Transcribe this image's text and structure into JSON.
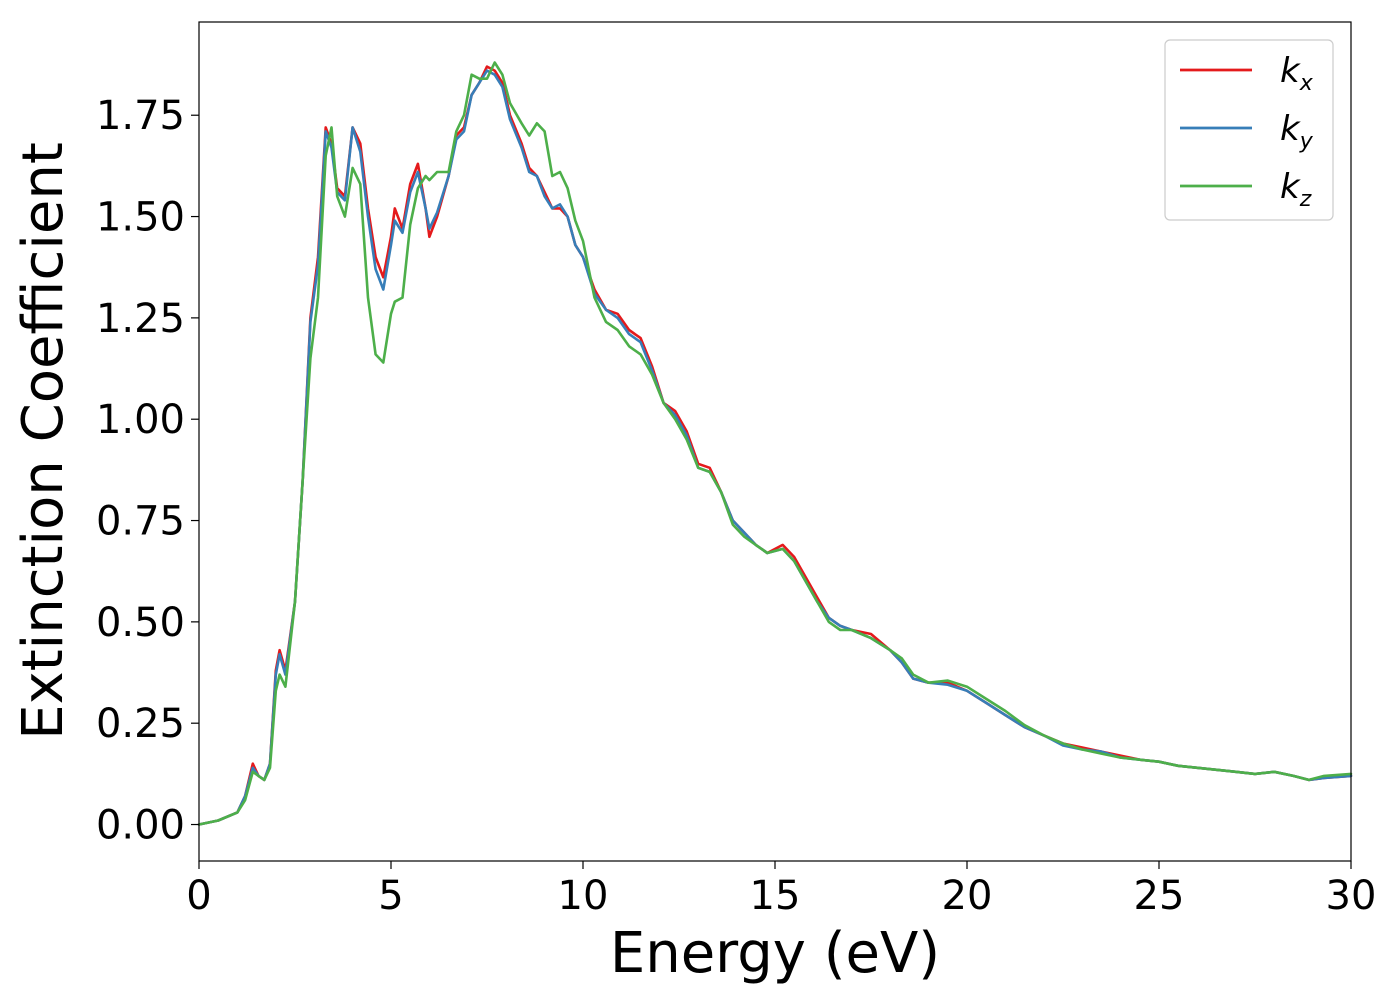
{
  "chart_data": {
    "type": "line",
    "xlabel": "Energy (eV)",
    "ylabel": "Extinction Coefficient",
    "xlim": [
      0,
      30
    ],
    "ylim": [
      -0.09,
      1.98
    ],
    "xticks": [
      0,
      5,
      10,
      15,
      20,
      25,
      30
    ],
    "xtick_labels": [
      "0",
      "5",
      "10",
      "15",
      "20",
      "25",
      "30"
    ],
    "yticks": [
      0.0,
      0.25,
      0.5,
      0.75,
      1.0,
      1.25,
      1.5,
      1.75
    ],
    "ytick_labels": [
      "0.00",
      "0.25",
      "0.50",
      "0.75",
      "1.00",
      "1.25",
      "1.50",
      "1.75"
    ],
    "grid": false,
    "legend_position": "top-right",
    "series": [
      {
        "name": "k",
        "subscript": "x",
        "color": "#e41a1c",
        "points": [
          [
            0,
            0.0
          ],
          [
            0.5,
            0.01
          ],
          [
            1.0,
            0.03
          ],
          [
            1.2,
            0.07
          ],
          [
            1.4,
            0.15
          ],
          [
            1.55,
            0.12
          ],
          [
            1.7,
            0.11
          ],
          [
            1.85,
            0.15
          ],
          [
            2.0,
            0.38
          ],
          [
            2.1,
            0.43
          ],
          [
            2.25,
            0.38
          ],
          [
            2.5,
            0.55
          ],
          [
            2.7,
            0.85
          ],
          [
            2.9,
            1.25
          ],
          [
            3.1,
            1.4
          ],
          [
            3.3,
            1.72
          ],
          [
            3.45,
            1.68
          ],
          [
            3.6,
            1.57
          ],
          [
            3.8,
            1.55
          ],
          [
            4.0,
            1.72
          ],
          [
            4.2,
            1.68
          ],
          [
            4.4,
            1.52
          ],
          [
            4.6,
            1.4
          ],
          [
            4.8,
            1.35
          ],
          [
            5.0,
            1.45
          ],
          [
            5.1,
            1.52
          ],
          [
            5.3,
            1.47
          ],
          [
            5.5,
            1.58
          ],
          [
            5.7,
            1.63
          ],
          [
            5.9,
            1.52
          ],
          [
            6.0,
            1.45
          ],
          [
            6.2,
            1.5
          ],
          [
            6.5,
            1.6
          ],
          [
            6.7,
            1.7
          ],
          [
            6.9,
            1.72
          ],
          [
            7.1,
            1.8
          ],
          [
            7.3,
            1.83
          ],
          [
            7.5,
            1.87
          ],
          [
            7.7,
            1.86
          ],
          [
            7.9,
            1.83
          ],
          [
            8.1,
            1.75
          ],
          [
            8.4,
            1.68
          ],
          [
            8.6,
            1.62
          ],
          [
            8.8,
            1.6
          ],
          [
            9.0,
            1.56
          ],
          [
            9.2,
            1.52
          ],
          [
            9.4,
            1.52
          ],
          [
            9.6,
            1.5
          ],
          [
            9.8,
            1.43
          ],
          [
            10.0,
            1.4
          ],
          [
            10.3,
            1.32
          ],
          [
            10.6,
            1.27
          ],
          [
            10.9,
            1.26
          ],
          [
            11.2,
            1.22
          ],
          [
            11.5,
            1.2
          ],
          [
            11.8,
            1.13
          ],
          [
            12.1,
            1.04
          ],
          [
            12.4,
            1.02
          ],
          [
            12.7,
            0.97
          ],
          [
            13.0,
            0.89
          ],
          [
            13.3,
            0.88
          ],
          [
            13.6,
            0.82
          ],
          [
            13.9,
            0.75
          ],
          [
            14.2,
            0.72
          ],
          [
            14.5,
            0.69
          ],
          [
            14.8,
            0.67
          ],
          [
            15.2,
            0.69
          ],
          [
            15.5,
            0.66
          ],
          [
            15.8,
            0.61
          ],
          [
            16.1,
            0.56
          ],
          [
            16.4,
            0.51
          ],
          [
            16.7,
            0.49
          ],
          [
            17.0,
            0.48
          ],
          [
            17.5,
            0.47
          ],
          [
            18.0,
            0.43
          ],
          [
            18.3,
            0.4
          ],
          [
            18.6,
            0.36
          ],
          [
            19.0,
            0.35
          ],
          [
            19.5,
            0.35
          ],
          [
            20.0,
            0.33
          ],
          [
            20.5,
            0.3
          ],
          [
            21.0,
            0.27
          ],
          [
            21.5,
            0.24
          ],
          [
            22.0,
            0.22
          ],
          [
            22.5,
            0.2
          ],
          [
            23.0,
            0.19
          ],
          [
            23.5,
            0.18
          ],
          [
            24.0,
            0.17
          ],
          [
            24.5,
            0.16
          ],
          [
            25.0,
            0.155
          ],
          [
            25.5,
            0.145
          ],
          [
            26.0,
            0.14
          ],
          [
            26.5,
            0.135
          ],
          [
            27.0,
            0.13
          ],
          [
            27.5,
            0.125
          ],
          [
            28.0,
            0.13
          ],
          [
            28.5,
            0.12
          ],
          [
            28.9,
            0.11
          ],
          [
            29.3,
            0.115
          ],
          [
            30.0,
            0.12
          ]
        ]
      },
      {
        "name": "k",
        "subscript": "y",
        "color": "#377eb8",
        "points": [
          [
            0,
            0.0
          ],
          [
            0.5,
            0.01
          ],
          [
            1.0,
            0.03
          ],
          [
            1.2,
            0.07
          ],
          [
            1.4,
            0.14
          ],
          [
            1.55,
            0.12
          ],
          [
            1.7,
            0.11
          ],
          [
            1.85,
            0.15
          ],
          [
            2.0,
            0.37
          ],
          [
            2.1,
            0.42
          ],
          [
            2.25,
            0.37
          ],
          [
            2.5,
            0.55
          ],
          [
            2.7,
            0.85
          ],
          [
            2.9,
            1.24
          ],
          [
            3.1,
            1.38
          ],
          [
            3.3,
            1.71
          ],
          [
            3.45,
            1.67
          ],
          [
            3.6,
            1.56
          ],
          [
            3.8,
            1.54
          ],
          [
            4.0,
            1.72
          ],
          [
            4.2,
            1.66
          ],
          [
            4.4,
            1.5
          ],
          [
            4.6,
            1.37
          ],
          [
            4.8,
            1.32
          ],
          [
            5.0,
            1.43
          ],
          [
            5.1,
            1.49
          ],
          [
            5.3,
            1.46
          ],
          [
            5.5,
            1.56
          ],
          [
            5.7,
            1.61
          ],
          [
            5.9,
            1.52
          ],
          [
            6.0,
            1.47
          ],
          [
            6.2,
            1.51
          ],
          [
            6.5,
            1.6
          ],
          [
            6.7,
            1.69
          ],
          [
            6.9,
            1.71
          ],
          [
            7.1,
            1.8
          ],
          [
            7.3,
            1.83
          ],
          [
            7.5,
            1.86
          ],
          [
            7.7,
            1.85
          ],
          [
            7.9,
            1.82
          ],
          [
            8.1,
            1.74
          ],
          [
            8.4,
            1.67
          ],
          [
            8.6,
            1.61
          ],
          [
            8.8,
            1.6
          ],
          [
            9.0,
            1.55
          ],
          [
            9.2,
            1.52
          ],
          [
            9.4,
            1.53
          ],
          [
            9.6,
            1.5
          ],
          [
            9.8,
            1.43
          ],
          [
            10.0,
            1.4
          ],
          [
            10.3,
            1.31
          ],
          [
            10.6,
            1.27
          ],
          [
            10.9,
            1.25
          ],
          [
            11.2,
            1.21
          ],
          [
            11.5,
            1.19
          ],
          [
            11.8,
            1.12
          ],
          [
            12.1,
            1.04
          ],
          [
            12.4,
            1.01
          ],
          [
            12.7,
            0.96
          ],
          [
            13.0,
            0.88
          ],
          [
            13.3,
            0.87
          ],
          [
            13.6,
            0.82
          ],
          [
            13.9,
            0.75
          ],
          [
            14.2,
            0.72
          ],
          [
            14.5,
            0.69
          ],
          [
            14.8,
            0.67
          ],
          [
            15.2,
            0.68
          ],
          [
            15.5,
            0.65
          ],
          [
            15.8,
            0.6
          ],
          [
            16.1,
            0.55
          ],
          [
            16.4,
            0.51
          ],
          [
            16.7,
            0.49
          ],
          [
            17.0,
            0.48
          ],
          [
            17.5,
            0.46
          ],
          [
            18.0,
            0.43
          ],
          [
            18.3,
            0.4
          ],
          [
            18.6,
            0.36
          ],
          [
            19.0,
            0.35
          ],
          [
            19.5,
            0.345
          ],
          [
            20.0,
            0.33
          ],
          [
            20.5,
            0.3
          ],
          [
            21.0,
            0.27
          ],
          [
            21.5,
            0.24
          ],
          [
            22.0,
            0.22
          ],
          [
            22.5,
            0.195
          ],
          [
            23.0,
            0.185
          ],
          [
            23.5,
            0.18
          ],
          [
            24.0,
            0.165
          ],
          [
            24.5,
            0.16
          ],
          [
            25.0,
            0.155
          ],
          [
            25.5,
            0.145
          ],
          [
            26.0,
            0.14
          ],
          [
            26.5,
            0.135
          ],
          [
            27.0,
            0.13
          ],
          [
            27.5,
            0.125
          ],
          [
            28.0,
            0.13
          ],
          [
            28.5,
            0.12
          ],
          [
            28.9,
            0.11
          ],
          [
            29.3,
            0.115
          ],
          [
            30.0,
            0.12
          ]
        ]
      },
      {
        "name": "k",
        "subscript": "z",
        "color": "#4daf4a",
        "points": [
          [
            0,
            0.0
          ],
          [
            0.5,
            0.01
          ],
          [
            1.0,
            0.03
          ],
          [
            1.2,
            0.06
          ],
          [
            1.4,
            0.13
          ],
          [
            1.55,
            0.12
          ],
          [
            1.7,
            0.11
          ],
          [
            1.85,
            0.14
          ],
          [
            2.0,
            0.33
          ],
          [
            2.1,
            0.37
          ],
          [
            2.25,
            0.34
          ],
          [
            2.5,
            0.55
          ],
          [
            2.7,
            0.85
          ],
          [
            2.9,
            1.15
          ],
          [
            3.1,
            1.3
          ],
          [
            3.3,
            1.65
          ],
          [
            3.45,
            1.72
          ],
          [
            3.6,
            1.55
          ],
          [
            3.8,
            1.5
          ],
          [
            4.0,
            1.62
          ],
          [
            4.2,
            1.58
          ],
          [
            4.4,
            1.3
          ],
          [
            4.6,
            1.16
          ],
          [
            4.8,
            1.14
          ],
          [
            5.0,
            1.26
          ],
          [
            5.1,
            1.29
          ],
          [
            5.3,
            1.3
          ],
          [
            5.5,
            1.48
          ],
          [
            5.7,
            1.57
          ],
          [
            5.9,
            1.6
          ],
          [
            6.0,
            1.59
          ],
          [
            6.2,
            1.61
          ],
          [
            6.5,
            1.61
          ],
          [
            6.7,
            1.71
          ],
          [
            6.9,
            1.75
          ],
          [
            7.1,
            1.85
          ],
          [
            7.3,
            1.84
          ],
          [
            7.5,
            1.84
          ],
          [
            7.7,
            1.88
          ],
          [
            7.9,
            1.85
          ],
          [
            8.1,
            1.78
          ],
          [
            8.4,
            1.73
          ],
          [
            8.6,
            1.7
          ],
          [
            8.8,
            1.73
          ],
          [
            9.0,
            1.71
          ],
          [
            9.2,
            1.6
          ],
          [
            9.4,
            1.61
          ],
          [
            9.6,
            1.57
          ],
          [
            9.8,
            1.49
          ],
          [
            10.0,
            1.44
          ],
          [
            10.3,
            1.3
          ],
          [
            10.6,
            1.24
          ],
          [
            10.9,
            1.22
          ],
          [
            11.2,
            1.18
          ],
          [
            11.5,
            1.16
          ],
          [
            11.8,
            1.11
          ],
          [
            12.1,
            1.04
          ],
          [
            12.4,
            1.0
          ],
          [
            12.7,
            0.95
          ],
          [
            13.0,
            0.88
          ],
          [
            13.3,
            0.87
          ],
          [
            13.6,
            0.82
          ],
          [
            13.9,
            0.74
          ],
          [
            14.2,
            0.71
          ],
          [
            14.5,
            0.69
          ],
          [
            14.8,
            0.67
          ],
          [
            15.2,
            0.68
          ],
          [
            15.5,
            0.65
          ],
          [
            15.8,
            0.6
          ],
          [
            16.1,
            0.55
          ],
          [
            16.4,
            0.5
          ],
          [
            16.7,
            0.48
          ],
          [
            17.0,
            0.48
          ],
          [
            17.5,
            0.46
          ],
          [
            18.0,
            0.43
          ],
          [
            18.3,
            0.41
          ],
          [
            18.6,
            0.37
          ],
          [
            19.0,
            0.35
          ],
          [
            19.5,
            0.355
          ],
          [
            20.0,
            0.34
          ],
          [
            20.5,
            0.31
          ],
          [
            21.0,
            0.28
          ],
          [
            21.5,
            0.245
          ],
          [
            22.0,
            0.22
          ],
          [
            22.5,
            0.2
          ],
          [
            23.0,
            0.185
          ],
          [
            23.5,
            0.175
          ],
          [
            24.0,
            0.165
          ],
          [
            24.5,
            0.16
          ],
          [
            25.0,
            0.155
          ],
          [
            25.5,
            0.145
          ],
          [
            26.0,
            0.14
          ],
          [
            26.5,
            0.135
          ],
          [
            27.0,
            0.13
          ],
          [
            27.5,
            0.125
          ],
          [
            28.0,
            0.13
          ],
          [
            28.5,
            0.12
          ],
          [
            28.9,
            0.11
          ],
          [
            29.3,
            0.12
          ],
          [
            30.0,
            0.125
          ]
        ]
      }
    ]
  }
}
